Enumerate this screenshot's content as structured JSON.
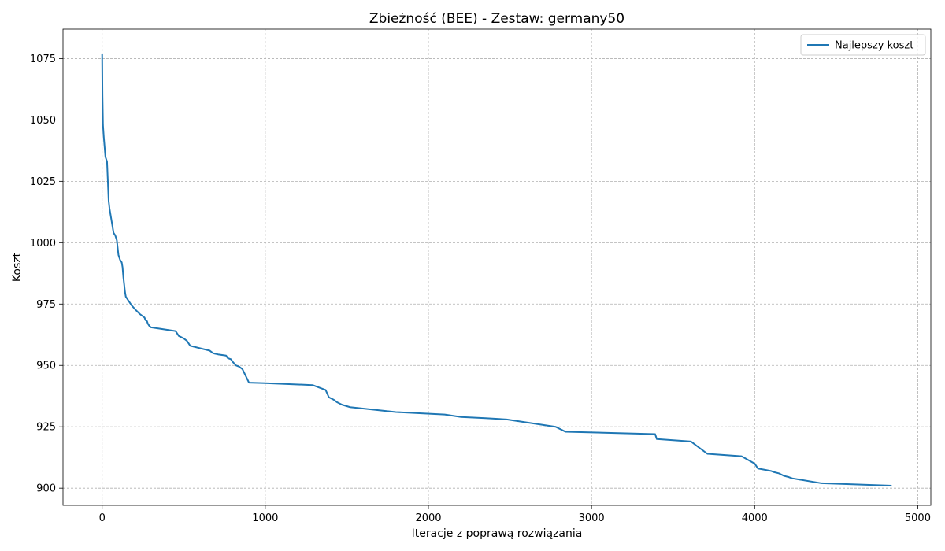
{
  "chart_data": {
    "type": "line",
    "title": "Zbieżność (BEE) - Zestaw: germany50",
    "xlabel": "Iteracje z poprawą rozwiązania",
    "ylabel": "Koszt",
    "xlim": [
      -240,
      5080
    ],
    "ylim": [
      893,
      1087
    ],
    "xticks": [
      0,
      1000,
      2000,
      3000,
      4000,
      5000
    ],
    "yticks": [
      900,
      925,
      950,
      975,
      1000,
      1025,
      1050,
      1075
    ],
    "grid": true,
    "legend_position": "top-right",
    "series": [
      {
        "name": "Najlepszy koszt",
        "color": "#1f77b4",
        "x": [
          0,
          2,
          5,
          10,
          20,
          30,
          40,
          45,
          55,
          70,
          80,
          90,
          100,
          105,
          110,
          120,
          125,
          130,
          140,
          145,
          150,
          155,
          170,
          180,
          200,
          230,
          260,
          265,
          275,
          280,
          290,
          300,
          450,
          470,
          500,
          520,
          540,
          660,
          680,
          690,
          710,
          760,
          770,
          790,
          800,
          820,
          840,
          860,
          900,
          1000,
          1290,
          1330,
          1370,
          1380,
          1390,
          1420,
          1440,
          1470,
          1520,
          1800,
          2100,
          2200,
          2350,
          2480,
          2780,
          2840,
          3390,
          3400,
          3610,
          3710,
          3920,
          4000,
          4010,
          4020,
          4060,
          4100,
          4120,
          4150,
          4180,
          4210,
          4230,
          4410,
          4840
        ],
        "y": [
          1077,
          1060,
          1048,
          1043,
          1035,
          1033,
          1017,
          1014,
          1010,
          1004,
          1003,
          1001,
          995,
          994,
          993,
          992,
          990,
          986,
          980,
          978,
          977.5,
          977,
          975.5,
          974.5,
          973,
          971,
          969.5,
          968.5,
          968,
          967,
          966,
          965.5,
          964,
          962,
          961,
          960,
          958,
          956,
          955,
          954.8,
          954.5,
          954,
          953,
          952.5,
          951.5,
          950,
          949.5,
          948.5,
          943,
          942.8,
          942,
          941,
          940,
          938.5,
          937,
          936,
          935,
          934,
          933,
          931,
          930,
          929,
          928.5,
          928,
          925,
          923,
          922,
          920,
          919,
          914,
          913,
          910,
          909,
          908,
          907.5,
          907,
          906.5,
          906,
          905,
          904.5,
          904,
          902,
          901
        ]
      }
    ]
  }
}
